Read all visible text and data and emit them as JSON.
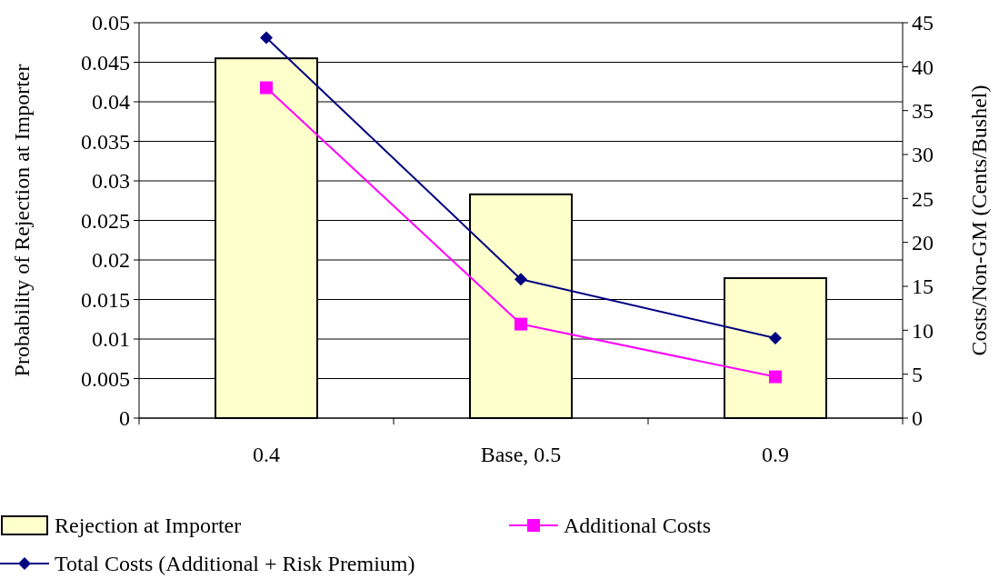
{
  "chart_data": {
    "type": "bar",
    "categories": [
      "0.4",
      "Base, 0.5",
      "0.9"
    ],
    "ylabel": "Probability of Rejection at Importer",
    "y2label": "Costs/Non-GM (Cents/Bushel)",
    "series": [
      {
        "name": "Rejection at Importer",
        "color": "#ffffcc",
        "values": [
          0.0455,
          0.0283,
          0.0177
        ]
      },
      {
        "name": "Additional Costs",
        "type": "line",
        "axis": "y2",
        "color": "#ff00ff",
        "marker": "square",
        "values": [
          37.6,
          10.7,
          4.7
        ]
      },
      {
        "name": "Total Costs (Additional + Risk Premium)",
        "type": "line",
        "axis": "y2",
        "color": "#000080",
        "marker": "diamond",
        "values": [
          43.3,
          15.8,
          9.1
        ]
      }
    ],
    "ylim": [
      0,
      0.05
    ],
    "yticks": [
      0,
      0.005,
      0.01,
      0.015,
      0.02,
      0.025,
      0.03,
      0.035,
      0.04,
      0.045,
      0.05
    ],
    "y2lim": [
      0,
      45
    ],
    "y2ticks": [
      0,
      5,
      10,
      15,
      20,
      25,
      30,
      35,
      40,
      45
    ],
    "grid": "y",
    "legend": "bottom"
  }
}
